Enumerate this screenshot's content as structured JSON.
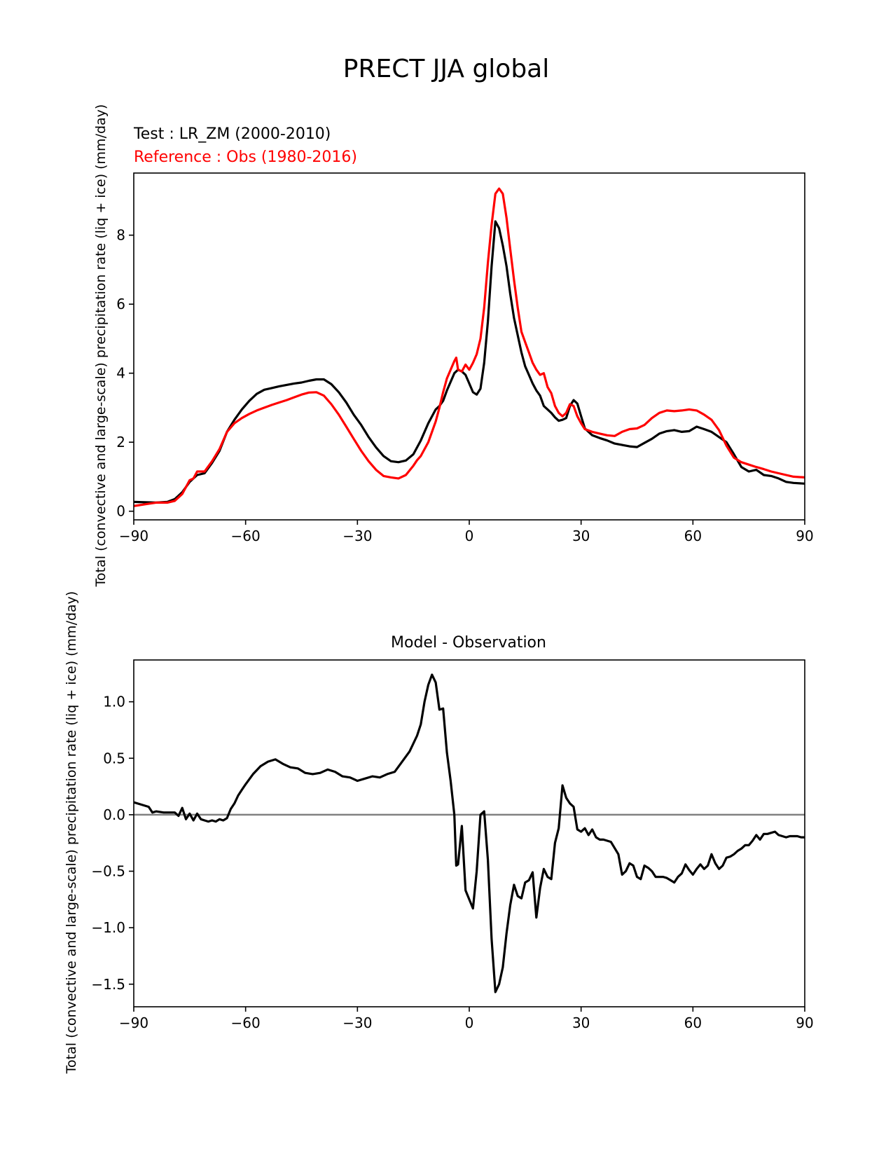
{
  "figure_title": "PRECT JJA global",
  "chart_data": [
    {
      "type": "line",
      "annotations": [
        "Test : LR_ZM (2000-2010)",
        "Reference : Obs (1980-2016)"
      ],
      "annotation_colors": [
        "#000000",
        "#ff0000"
      ],
      "ylabel": "Total (convective and large-scale) precipitation rate (liq + ice) (mm/day)",
      "xlim": [
        -90,
        90
      ],
      "ylim": [
        -0.25,
        9.8
      ],
      "xticks": [
        -90,
        -60,
        -30,
        0,
        30,
        60,
        90
      ],
      "xtick_labels": [
        "−90",
        "−60",
        "−30",
        "0",
        "30",
        "60",
        "90"
      ],
      "yticks": [
        0,
        2,
        4,
        6,
        8
      ],
      "ytick_labels": [
        "0",
        "2",
        "4",
        "6",
        "8"
      ],
      "grid": false,
      "series": [
        {
          "color": "#000000",
          "x": [
            -90,
            -87,
            -84,
            -81,
            -79,
            -77,
            -75,
            -73,
            -71,
            -69,
            -67,
            -65,
            -63,
            -61,
            -59,
            -57,
            -55,
            -53,
            -51,
            -49,
            -47,
            -45,
            -43,
            -41,
            -39,
            -37,
            -35,
            -33,
            -31,
            -29,
            -27,
            -25,
            -23,
            -21,
            -19,
            -17,
            -15,
            -13,
            -11,
            -9,
            -8,
            -7,
            -6,
            -5,
            -4,
            -3,
            -2,
            -1,
            0,
            1,
            2,
            3,
            4,
            5,
            6,
            7,
            8,
            9,
            10,
            11,
            12,
            13,
            14,
            15,
            16,
            17,
            18,
            19,
            20,
            21,
            22,
            23,
            24,
            25,
            26,
            27,
            28,
            29,
            30,
            31,
            33,
            35,
            37,
            39,
            41,
            43,
            45,
            47,
            49,
            51,
            53,
            55,
            57,
            59,
            61,
            63,
            65,
            67,
            69,
            71,
            73,
            75,
            77,
            79,
            81,
            83,
            85,
            87,
            90
          ],
          "y": [
            0.27,
            0.26,
            0.25,
            0.27,
            0.35,
            0.55,
            0.85,
            1.05,
            1.1,
            1.4,
            1.75,
            2.3,
            2.65,
            2.95,
            3.2,
            3.4,
            3.52,
            3.57,
            3.62,
            3.66,
            3.7,
            3.73,
            3.78,
            3.82,
            3.82,
            3.68,
            3.45,
            3.15,
            2.8,
            2.5,
            2.15,
            1.85,
            1.6,
            1.45,
            1.42,
            1.47,
            1.65,
            2.05,
            2.55,
            2.95,
            3.05,
            3.2,
            3.5,
            3.75,
            4.0,
            4.1,
            4.05,
            3.95,
            3.7,
            3.45,
            3.38,
            3.55,
            4.3,
            5.5,
            7.1,
            8.4,
            8.2,
            7.7,
            7.1,
            6.3,
            5.6,
            5.1,
            4.6,
            4.2,
            3.95,
            3.7,
            3.5,
            3.35,
            3.05,
            2.95,
            2.85,
            2.72,
            2.62,
            2.65,
            2.7,
            3.05,
            3.22,
            3.12,
            2.75,
            2.4,
            2.2,
            2.12,
            2.05,
            1.96,
            1.92,
            1.88,
            1.86,
            1.98,
            2.1,
            2.25,
            2.32,
            2.35,
            2.3,
            2.32,
            2.45,
            2.38,
            2.3,
            2.15,
            2.0,
            1.65,
            1.28,
            1.15,
            1.2,
            1.05,
            1.02,
            0.95,
            0.85,
            0.82,
            0.8
          ]
        },
        {
          "color": "#ff0000",
          "x": [
            -90,
            -87,
            -84,
            -81,
            -79,
            -77,
            -75,
            -74,
            -73,
            -71,
            -69,
            -67,
            -65,
            -63,
            -61,
            -59,
            -57,
            -55,
            -53,
            -51,
            -49,
            -47,
            -45,
            -43,
            -41,
            -39,
            -37,
            -35,
            -33,
            -31,
            -29,
            -27,
            -25,
            -23,
            -21,
            -19,
            -17,
            -15,
            -14,
            -13,
            -11,
            -9,
            -8,
            -7,
            -6,
            -5,
            -4,
            -3.5,
            -3,
            -2,
            -1,
            0,
            1,
            2,
            3,
            4,
            5,
            6,
            7,
            8,
            9,
            10,
            11,
            12,
            13,
            14,
            15,
            16,
            17,
            18,
            19,
            20,
            21,
            22,
            23,
            24,
            25,
            26,
            27,
            28,
            29,
            30,
            31,
            33,
            35,
            37,
            39,
            41,
            43,
            45,
            47,
            49,
            51,
            53,
            55,
            57,
            59,
            61,
            63,
            65,
            67,
            69,
            71,
            73,
            75,
            77,
            79,
            81,
            83,
            85,
            87,
            90
          ],
          "y": [
            0.15,
            0.2,
            0.25,
            0.25,
            0.3,
            0.5,
            0.9,
            0.95,
            1.15,
            1.15,
            1.45,
            1.8,
            2.3,
            2.55,
            2.7,
            2.82,
            2.92,
            3.0,
            3.08,
            3.15,
            3.22,
            3.3,
            3.38,
            3.44,
            3.45,
            3.35,
            3.1,
            2.8,
            2.45,
            2.1,
            1.75,
            1.45,
            1.2,
            1.02,
            0.98,
            0.95,
            1.05,
            1.32,
            1.48,
            1.6,
            2.0,
            2.6,
            3.0,
            3.45,
            3.85,
            4.1,
            4.35,
            4.45,
            4.1,
            4.05,
            4.25,
            4.1,
            4.3,
            4.55,
            5.0,
            5.9,
            7.2,
            8.3,
            9.2,
            9.35,
            9.2,
            8.5,
            7.6,
            6.7,
            5.9,
            5.2,
            4.9,
            4.6,
            4.3,
            4.1,
            3.95,
            4.0,
            3.6,
            3.42,
            3.05,
            2.85,
            2.75,
            2.85,
            3.1,
            3.05,
            2.75,
            2.55,
            2.38,
            2.3,
            2.25,
            2.2,
            2.18,
            2.3,
            2.38,
            2.4,
            2.5,
            2.7,
            2.85,
            2.92,
            2.9,
            2.92,
            2.95,
            2.92,
            2.8,
            2.65,
            2.35,
            1.9,
            1.55,
            1.42,
            1.35,
            1.28,
            1.22,
            1.15,
            1.1,
            1.05,
            1.0,
            0.98
          ]
        }
      ]
    },
    {
      "type": "line",
      "title": "Model - Observation",
      "ylabel": "Total (convective and large-scale) precipitation rate (liq + ice) (mm/day)",
      "xlim": [
        -90,
        90
      ],
      "ylim": [
        -1.7,
        1.37
      ],
      "xticks": [
        -90,
        -60,
        -30,
        0,
        30,
        60,
        90
      ],
      "xtick_labels": [
        "−90",
        "−60",
        "−30",
        "0",
        "30",
        "60",
        "90"
      ],
      "yticks": [
        1.0,
        0.5,
        0.0,
        -0.5,
        -1.0,
        -1.5
      ],
      "ytick_labels": [
        "1.0",
        "0.5",
        "0.0",
        "−0.5",
        "−1.0",
        "−1.5"
      ],
      "reference_line": 0.0,
      "grid": false,
      "series": [
        {
          "color": "#000000",
          "x": [
            -90,
            -88,
            -86,
            -85,
            -84,
            -82,
            -80,
            -79,
            -78,
            -77,
            -76,
            -75,
            -74,
            -73,
            -72,
            -71,
            -70,
            -69,
            -68,
            -67,
            -66,
            -65,
            -64,
            -63,
            -62,
            -61,
            -60,
            -58,
            -56,
            -54,
            -52,
            -50,
            -48,
            -46,
            -44,
            -42,
            -40,
            -38,
            -36,
            -34,
            -32,
            -30,
            -28,
            -26,
            -24,
            -22,
            -20,
            -18,
            -16,
            -14,
            -13,
            -12,
            -11,
            -10,
            -9,
            -8,
            -7,
            -6,
            -5,
            -4,
            -3.5,
            -3,
            -2,
            -1,
            0,
            1,
            2,
            3,
            4,
            5,
            6,
            7,
            8,
            9,
            10,
            11,
            12,
            13,
            14,
            15,
            16,
            17,
            18,
            19,
            20,
            21,
            22,
            23,
            24,
            25,
            26,
            27,
            28,
            29,
            30,
            31,
            32,
            33,
            34,
            35,
            36,
            38,
            40,
            41,
            42,
            43,
            44,
            45,
            46,
            47,
            48,
            49,
            50,
            51,
            52,
            53,
            54,
            55,
            56,
            57,
            58,
            59,
            60,
            61,
            62,
            63,
            64,
            65,
            66,
            67,
            68,
            69,
            70,
            71,
            72,
            73,
            74,
            75,
            76,
            77,
            78,
            79,
            80,
            81,
            82,
            83,
            84,
            85,
            86,
            87,
            88,
            89,
            90
          ],
          "y": [
            0.11,
            0.09,
            0.07,
            0.02,
            0.03,
            0.02,
            0.02,
            0.02,
            -0.01,
            0.06,
            -0.04,
            0.01,
            -0.05,
            0.01,
            -0.04,
            -0.05,
            -0.06,
            -0.05,
            -0.06,
            -0.04,
            -0.05,
            -0.03,
            0.05,
            0.1,
            0.17,
            0.22,
            0.27,
            0.36,
            0.43,
            0.47,
            0.49,
            0.45,
            0.42,
            0.41,
            0.37,
            0.36,
            0.37,
            0.4,
            0.38,
            0.34,
            0.33,
            0.3,
            0.32,
            0.34,
            0.33,
            0.36,
            0.38,
            0.47,
            0.56,
            0.7,
            0.8,
            1.0,
            1.15,
            1.24,
            1.17,
            0.93,
            0.94,
            0.55,
            0.3,
            0.0,
            -0.45,
            -0.44,
            -0.1,
            -0.67,
            -0.75,
            -0.83,
            -0.5,
            0.0,
            0.03,
            -0.4,
            -1.1,
            -1.57,
            -1.5,
            -1.35,
            -1.05,
            -0.8,
            -0.62,
            -0.72,
            -0.74,
            -0.6,
            -0.58,
            -0.51,
            -0.91,
            -0.65,
            -0.48,
            -0.55,
            -0.57,
            -0.25,
            -0.12,
            0.26,
            0.15,
            0.1,
            0.07,
            -0.13,
            -0.15,
            -0.12,
            -0.18,
            -0.13,
            -0.2,
            -0.22,
            -0.22,
            -0.24,
            -0.35,
            -0.53,
            -0.5,
            -0.43,
            -0.45,
            -0.55,
            -0.57,
            -0.45,
            -0.47,
            -0.5,
            -0.55,
            -0.55,
            -0.55,
            -0.56,
            -0.58,
            -0.6,
            -0.55,
            -0.52,
            -0.44,
            -0.49,
            -0.53,
            -0.48,
            -0.44,
            -0.48,
            -0.45,
            -0.35,
            -0.43,
            -0.48,
            -0.45,
            -0.38,
            -0.37,
            -0.35,
            -0.32,
            -0.3,
            -0.27,
            -0.27,
            -0.23,
            -0.18,
            -0.22,
            -0.17,
            -0.17,
            -0.16,
            -0.15,
            -0.18,
            -0.19,
            -0.2,
            -0.19,
            -0.19,
            -0.19,
            -0.2,
            -0.2
          ]
        }
      ]
    }
  ]
}
